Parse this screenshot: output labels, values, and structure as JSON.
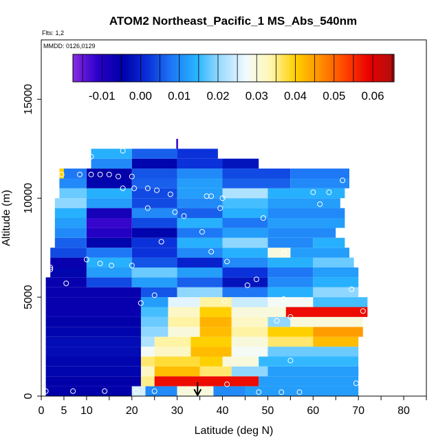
{
  "chart_data": {
    "type": "heatmap",
    "title": "ATOM2 Northeast_Pacific_1 MS_Abs_540nm",
    "subtitle_flights": "Flts: 1,2",
    "subtitle_dates": "MMDD: 0126,0129",
    "xlabel": "Latitude (deg N)",
    "ylabel": "Altitude (m)",
    "xlim": [
      0,
      85
    ],
    "ylim": [
      0,
      18000
    ],
    "x_ticks": [
      0,
      5,
      10,
      20,
      30,
      40,
      50,
      60,
      70,
      80
    ],
    "x_minor_ticks": [
      15,
      25,
      35,
      45,
      55,
      65,
      75,
      85
    ],
    "y_ticks": [
      0,
      5000,
      10000,
      15000
    ],
    "colorbar": {
      "min": -0.0175,
      "max": 0.0655,
      "tick_values": [
        -0.01,
        0.0,
        0.01,
        0.02,
        0.03,
        0.04,
        0.05,
        0.06
      ],
      "tick_labels": [
        "-0.01",
        "0.00",
        "0.01",
        "0.02",
        "0.03",
        "0.04",
        "0.05",
        "0.06"
      ],
      "colors": [
        "#8a2be2",
        "#2a00c8",
        "#0000a8",
        "#0a2ed8",
        "#1e78f5",
        "#28b4ff",
        "#9fdcff",
        "#f2fbff",
        "#fff6b0",
        "#ffd000",
        "#ff9000",
        "#ff4500",
        "#e80000",
        "#b01010"
      ]
    },
    "profiles": [
      {
        "alt": [
          0,
          500
        ],
        "lat": [
          1,
          70
        ],
        "segments": [
          {
            "to": 20,
            "v": -0.005
          },
          {
            "to": 23,
            "v": 0.025
          },
          {
            "to": 30,
            "v": 0.01
          },
          {
            "to": 38,
            "v": 0.03
          },
          {
            "to": 45,
            "v": 0.01
          },
          {
            "to": 70,
            "v": 0.012
          }
        ]
      },
      {
        "alt": [
          500,
          1000
        ],
        "lat": [
          1,
          70
        ],
        "segments": [
          {
            "to": 22,
            "v": -0.005
          },
          {
            "to": 25,
            "v": 0.035
          },
          {
            "to": 48,
            "v": 0.058
          },
          {
            "to": 70,
            "v": 0.012
          }
        ]
      },
      {
        "alt": [
          1000,
          1500
        ],
        "lat": [
          1,
          70
        ],
        "segments": [
          {
            "to": 22,
            "v": -0.004
          },
          {
            "to": 25,
            "v": 0.032
          },
          {
            "to": 35,
            "v": 0.042
          },
          {
            "to": 42,
            "v": 0.036
          },
          {
            "to": 50,
            "v": 0.02
          },
          {
            "to": 70,
            "v": 0.012
          }
        ]
      },
      {
        "alt": [
          1500,
          2000
        ],
        "lat": [
          1,
          70
        ],
        "segments": [
          {
            "to": 22,
            "v": -0.004
          },
          {
            "to": 25,
            "v": 0.036
          },
          {
            "to": 35,
            "v": 0.038
          },
          {
            "to": 40,
            "v": 0.04
          },
          {
            "to": 48,
            "v": 0.03
          },
          {
            "to": 70,
            "v": 0.015
          }
        ]
      },
      {
        "alt": [
          2000,
          2500
        ],
        "lat": [
          1,
          70
        ],
        "segments": [
          {
            "to": 22,
            "v": -0.003
          },
          {
            "to": 25,
            "v": 0.028
          },
          {
            "to": 33,
            "v": 0.032
          },
          {
            "to": 42,
            "v": 0.042
          },
          {
            "to": 50,
            "v": 0.028
          },
          {
            "to": 70,
            "v": 0.018
          }
        ]
      },
      {
        "alt": [
          2500,
          3000
        ],
        "lat": [
          1,
          70
        ],
        "segments": [
          {
            "to": 22,
            "v": -0.003
          },
          {
            "to": 25,
            "v": 0.022
          },
          {
            "to": 33,
            "v": 0.034
          },
          {
            "to": 42,
            "v": 0.04
          },
          {
            "to": 50,
            "v": 0.03
          },
          {
            "to": 60,
            "v": 0.036
          },
          {
            "to": 70,
            "v": 0.042
          }
        ]
      },
      {
        "alt": [
          3000,
          3500
        ],
        "lat": [
          1,
          71
        ],
        "segments": [
          {
            "to": 22,
            "v": -0.004
          },
          {
            "to": 28,
            "v": 0.02
          },
          {
            "to": 35,
            "v": 0.03
          },
          {
            "to": 42,
            "v": 0.042
          },
          {
            "to": 50,
            "v": 0.034
          },
          {
            "to": 60,
            "v": 0.04
          },
          {
            "to": 71,
            "v": 0.045
          }
        ]
      },
      {
        "alt": [
          3500,
          4000
        ],
        "lat": [
          1,
          71
        ],
        "segments": [
          {
            "to": 22,
            "v": -0.005
          },
          {
            "to": 28,
            "v": 0.018
          },
          {
            "to": 35,
            "v": 0.034
          },
          {
            "to": 42,
            "v": 0.043
          },
          {
            "to": 50,
            "v": 0.032
          },
          {
            "to": 55,
            "v": 0.02
          },
          {
            "to": 71,
            "v": 0.03
          }
        ]
      },
      {
        "alt": [
          4000,
          4500
        ],
        "lat": [
          1,
          72
        ],
        "segments": [
          {
            "to": 22,
            "v": -0.006
          },
          {
            "to": 28,
            "v": 0.016
          },
          {
            "to": 35,
            "v": 0.032
          },
          {
            "to": 42,
            "v": 0.04
          },
          {
            "to": 54,
            "v": 0.03
          },
          {
            "to": 72,
            "v": 0.058
          }
        ]
      },
      {
        "alt": [
          4500,
          5000
        ],
        "lat": [
          1,
          72
        ],
        "segments": [
          {
            "to": 22,
            "v": -0.006
          },
          {
            "to": 28,
            "v": 0.012
          },
          {
            "to": 35,
            "v": 0.026
          },
          {
            "to": 42,
            "v": 0.034
          },
          {
            "to": 50,
            "v": 0.024
          },
          {
            "to": 60,
            "v": 0.028
          },
          {
            "to": 72,
            "v": 0.016
          }
        ]
      },
      {
        "alt": [
          5000,
          5500
        ],
        "lat": [
          1,
          70
        ],
        "segments": [
          {
            "to": 22,
            "v": -0.006
          },
          {
            "to": 30,
            "v": 0.005
          },
          {
            "to": 40,
            "v": 0.02
          },
          {
            "to": 50,
            "v": 0.008
          },
          {
            "to": 60,
            "v": 0.014
          },
          {
            "to": 70,
            "v": 0.02
          }
        ]
      },
      {
        "alt": [
          5500,
          6000
        ],
        "lat": [
          1,
          70
        ],
        "segments": [
          {
            "to": 10,
            "v": -0.006
          },
          {
            "to": 20,
            "v": 0.004
          },
          {
            "to": 30,
            "v": 0.012
          },
          {
            "to": 40,
            "v": 0.006
          },
          {
            "to": 50,
            "v": -0.002
          },
          {
            "to": 60,
            "v": 0.01
          },
          {
            "to": 70,
            "v": 0.014
          }
        ]
      },
      {
        "alt": [
          6000,
          6500
        ],
        "lat": [
          2,
          70
        ],
        "segments": [
          {
            "to": 10,
            "v": -0.004
          },
          {
            "to": 20,
            "v": 0.012
          },
          {
            "to": 30,
            "v": 0.018
          },
          {
            "to": 40,
            "v": 0.012
          },
          {
            "to": 50,
            "v": 0.002
          },
          {
            "to": 60,
            "v": 0.008
          },
          {
            "to": 70,
            "v": 0.012
          }
        ]
      },
      {
        "alt": [
          6500,
          7000
        ],
        "lat": [
          2,
          69
        ],
        "segments": [
          {
            "to": 10,
            "v": -0.006
          },
          {
            "to": 20,
            "v": 0.014
          },
          {
            "to": 30,
            "v": 0.005
          },
          {
            "to": 40,
            "v": 0.0
          },
          {
            "to": 50,
            "v": 0.01
          },
          {
            "to": 60,
            "v": 0.014
          },
          {
            "to": 69,
            "v": 0.018
          }
        ]
      },
      {
        "alt": [
          7000,
          7500
        ],
        "lat": [
          2,
          68
        ],
        "segments": [
          {
            "to": 10,
            "v": 0.004
          },
          {
            "to": 20,
            "v": 0.008
          },
          {
            "to": 30,
            "v": 0.002
          },
          {
            "to": 40,
            "v": 0.01
          },
          {
            "to": 50,
            "v": 0.014
          },
          {
            "to": 55,
            "v": 0.03
          },
          {
            "to": 68,
            "v": 0.012
          }
        ]
      },
      {
        "alt": [
          7500,
          8000
        ],
        "lat": [
          3,
          67
        ],
        "segments": [
          {
            "to": 10,
            "v": 0.006
          },
          {
            "to": 20,
            "v": -0.004
          },
          {
            "to": 30,
            "v": 0.002
          },
          {
            "to": 40,
            "v": 0.014
          },
          {
            "to": 50,
            "v": 0.02
          },
          {
            "to": 60,
            "v": 0.01
          },
          {
            "to": 67,
            "v": 0.014
          }
        ]
      },
      {
        "alt": [
          8000,
          8500
        ],
        "lat": [
          3,
          65
        ],
        "segments": [
          {
            "to": 10,
            "v": 0.01
          },
          {
            "to": 20,
            "v": -0.01
          },
          {
            "to": 30,
            "v": -0.004
          },
          {
            "to": 40,
            "v": 0.008
          },
          {
            "to": 50,
            "v": 0.012
          },
          {
            "to": 65,
            "v": 0.01
          }
        ]
      },
      {
        "alt": [
          8500,
          9000
        ],
        "lat": [
          3,
          67
        ],
        "segments": [
          {
            "to": 10,
            "v": 0.012
          },
          {
            "to": 20,
            "v": -0.012
          },
          {
            "to": 30,
            "v": 0.004
          },
          {
            "to": 40,
            "v": 0.014
          },
          {
            "to": 50,
            "v": 0.008
          },
          {
            "to": 67,
            "v": 0.012
          }
        ]
      },
      {
        "alt": [
          9000,
          9500
        ],
        "lat": [
          3,
          67
        ],
        "segments": [
          {
            "to": 10,
            "v": 0.014
          },
          {
            "to": 20,
            "v": -0.008
          },
          {
            "to": 30,
            "v": 0.01
          },
          {
            "to": 40,
            "v": 0.006
          },
          {
            "to": 50,
            "v": 0.014
          },
          {
            "to": 67,
            "v": 0.01
          }
        ]
      },
      {
        "alt": [
          9500,
          10000
        ],
        "lat": [
          3,
          66
        ],
        "segments": [
          {
            "to": 10,
            "v": 0.02
          },
          {
            "to": 20,
            "v": 0.012
          },
          {
            "to": 30,
            "v": 0.004
          },
          {
            "to": 40,
            "v": 0.01
          },
          {
            "to": 50,
            "v": 0.016
          },
          {
            "to": 66,
            "v": 0.012
          }
        ]
      },
      {
        "alt": [
          10000,
          10500
        ],
        "lat": [
          4,
          67
        ],
        "segments": [
          {
            "to": 10,
            "v": 0.018
          },
          {
            "to": 20,
            "v": 0.014
          },
          {
            "to": 30,
            "v": 0.004
          },
          {
            "to": 40,
            "v": 0.012
          },
          {
            "to": 50,
            "v": 0.022
          },
          {
            "to": 67,
            "v": 0.014
          }
        ]
      },
      {
        "alt": [
          10500,
          11000
        ],
        "lat": [
          4,
          68
        ],
        "segments": [
          {
            "to": 10,
            "v": 0.01
          },
          {
            "to": 20,
            "v": -0.004
          },
          {
            "to": 30,
            "v": 0.006
          },
          {
            "to": 40,
            "v": 0.012
          },
          {
            "to": 55,
            "v": 0.006
          },
          {
            "to": 68,
            "v": 0.01
          }
        ]
      },
      {
        "alt": [
          11000,
          11500
        ],
        "lat": [
          4,
          68
        ],
        "segments": [
          {
            "to": 5,
            "v": 0.04
          },
          {
            "to": 10,
            "v": 0.008
          },
          {
            "to": 20,
            "v": -0.005
          },
          {
            "to": 30,
            "v": 0.005
          },
          {
            "to": 40,
            "v": 0.01
          },
          {
            "to": 55,
            "v": 0.004
          },
          {
            "to": 68,
            "v": 0.008
          }
        ]
      },
      {
        "alt": [
          11500,
          12000
        ],
        "lat": [
          11,
          48
        ],
        "segments": [
          {
            "to": 20,
            "v": 0.01
          },
          {
            "to": 30,
            "v": -0.004
          },
          {
            "to": 40,
            "v": 0.002
          },
          {
            "to": 48,
            "v": -0.002
          }
        ]
      },
      {
        "alt": [
          12000,
          12500
        ],
        "lat": [
          11,
          39
        ],
        "segments": [
          {
            "to": 20,
            "v": 0.014
          },
          {
            "to": 30,
            "v": 0.006
          },
          {
            "to": 39,
            "v": 0.002
          }
        ]
      },
      {
        "alt": [
          12500,
          13000
        ],
        "lat": [
          29.8,
          30.2
        ],
        "segments": [
          {
            "to": 30.2,
            "v": -0.012
          }
        ]
      }
    ],
    "points": [
      [
        1,
        250
      ],
      [
        7,
        250
      ],
      [
        14,
        250
      ],
      [
        21,
        250
      ],
      [
        25,
        250
      ],
      [
        41,
        600
      ],
      [
        48,
        200
      ],
      [
        53,
        200
      ],
      [
        57,
        200
      ],
      [
        69.5,
        650
      ],
      [
        55,
        1800
      ],
      [
        52,
        3800
      ],
      [
        55,
        4000
      ],
      [
        71,
        4300
      ],
      [
        22,
        4700
      ],
      [
        25,
        5100
      ],
      [
        40.5,
        4800
      ],
      [
        53.5,
        4900
      ],
      [
        68.5,
        5400
      ],
      [
        5.5,
        5700
      ],
      [
        45.5,
        5600
      ],
      [
        47.5,
        5900
      ],
      [
        2,
        6400
      ],
      [
        2,
        6500
      ],
      [
        13,
        6700
      ],
      [
        15.5,
        6600
      ],
      [
        20,
        6600
      ],
      [
        10,
        6900
      ],
      [
        41,
        6800
      ],
      [
        37.5,
        7300
      ],
      [
        53.5,
        7200
      ],
      [
        26.5,
        7800
      ],
      [
        35.5,
        8300
      ],
      [
        29.5,
        9300
      ],
      [
        31.5,
        9100
      ],
      [
        23.5,
        9500
      ],
      [
        39.5,
        9500
      ],
      [
        49,
        9000
      ],
      [
        61.5,
        9700
      ],
      [
        36.5,
        10100
      ],
      [
        37.5,
        10100
      ],
      [
        40,
        10000
      ],
      [
        18,
        10500
      ],
      [
        20.5,
        10500
      ],
      [
        23.5,
        10500
      ],
      [
        25.5,
        10400
      ],
      [
        28.5,
        10200
      ],
      [
        60,
        10300
      ],
      [
        63.5,
        10300
      ],
      [
        4.5,
        11200
      ],
      [
        8.5,
        11200
      ],
      [
        11,
        11200
      ],
      [
        13,
        11200
      ],
      [
        15,
        11200
      ],
      [
        17,
        11100
      ],
      [
        20,
        11100
      ],
      [
        66.5,
        10900
      ],
      [
        11,
        12100
      ],
      [
        18,
        12400
      ]
    ],
    "marker_arrow_lat": 34.5
  }
}
